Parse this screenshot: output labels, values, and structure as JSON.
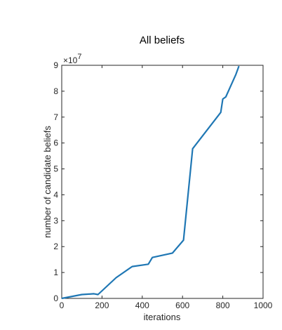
{
  "chart_data": {
    "type": "line",
    "title": "All beliefs",
    "xlabel": "iterations",
    "ylabel": "number of candidate beliefs",
    "y_multiplier": "×10",
    "y_exponent": "7",
    "xlim": [
      0,
      1000
    ],
    "ylim": [
      0,
      9
    ],
    "grid": false,
    "x_ticks": [
      0,
      200,
      400,
      600,
      800,
      1000
    ],
    "x_tick_labels": [
      "0",
      "200",
      "400",
      "600",
      "800",
      "1000"
    ],
    "y_ticks": [
      0,
      1,
      2,
      3,
      4,
      5,
      6,
      7,
      8,
      9
    ],
    "y_tick_labels": [
      "0",
      "1",
      "2",
      "3",
      "4",
      "5",
      "6",
      "7",
      "8",
      "9"
    ],
    "line_color": "#1f77b4",
    "series": [
      {
        "x": [
          0,
          100,
          160,
          180,
          270,
          350,
          430,
          450,
          550,
          605,
          650,
          790,
          800,
          815,
          865,
          880
        ],
        "y": [
          0,
          0.15,
          0.18,
          0.15,
          0.8,
          1.23,
          1.32,
          1.58,
          1.75,
          2.25,
          5.78,
          7.18,
          7.7,
          7.78,
          8.65,
          8.97
        ]
      }
    ]
  }
}
